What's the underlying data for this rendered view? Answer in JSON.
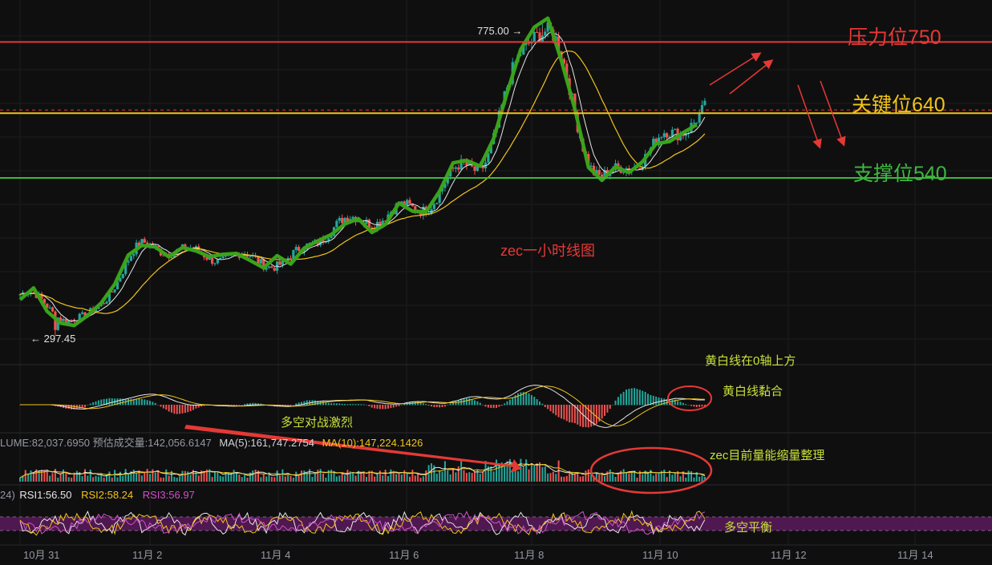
{
  "chart_data": {
    "type": "candlestick",
    "title": "zec一小时线图",
    "x_ticks": [
      "10月 31",
      "11月 2",
      "11月 4",
      "11月 6",
      "11月 8",
      "11月 10",
      "11月 12",
      "11月 14"
    ],
    "ylim": [
      270,
      805
    ],
    "price_path": [
      {
        "date": "10月 31",
        "close": 360
      },
      {
        "date": "11月 1",
        "close": 320
      },
      {
        "date": "11月 2",
        "close": 435
      },
      {
        "date": "11月 3",
        "close": 420
      },
      {
        "date": "11月 4",
        "close": 410
      },
      {
        "date": "11月 5",
        "close": 470
      },
      {
        "date": "11月 6",
        "close": 490
      },
      {
        "date": "11月 7",
        "close": 560
      },
      {
        "date": "11月 8",
        "close": 775
      },
      {
        "date": "11月 9",
        "close": 540
      },
      {
        "date": "11月 10",
        "close": 600
      },
      {
        "date": "11月 10",
        "close": 650
      }
    ],
    "high_marker": {
      "label": "775.00 →",
      "value": 775
    },
    "low_marker": {
      "label": "← 297.45",
      "value": 297.45
    },
    "current_price_line": 645,
    "levels": [
      {
        "label": "压力位750",
        "value": 750,
        "color": "#e53935"
      },
      {
        "label": "关键位640",
        "value": 640,
        "color": "#f0c419"
      },
      {
        "label": "支撑位540",
        "value": 540,
        "color": "#3db83d"
      }
    ],
    "annotations": [
      {
        "text": "zec一小时线图",
        "color": "#e53935"
      },
      {
        "text": "黄白线在0轴上方",
        "color": "#c8e03a"
      },
      {
        "text": "黄白线黏合",
        "color": "#c8e03a"
      },
      {
        "text": "多空对战激烈",
        "color": "#c8e03a"
      },
      {
        "text": "zec目前量能缩量整理",
        "color": "#c8e03a"
      },
      {
        "text": "多空平衡",
        "color": "#c8e03a"
      }
    ],
    "volume": {
      "label": "LUME:82,037.6950",
      "est_label": "预估成交量:142,056.6147",
      "ma5_label": "MA(5):161,747.2754",
      "ma10_label": "MA(10):147,224.1426"
    },
    "rsi": {
      "prefix": "24)",
      "rsi1": "RSI1:56.50",
      "rsi2": "RSI2:58.24",
      "rsi3": "RSI3:56.97"
    }
  },
  "colors": {
    "background": "#0f0f10",
    "up": "#26a69a",
    "down": "#ef5350",
    "trend": "#3aa31a",
    "ma_white": "#e6e6e6",
    "ma_yellow": "#f0c419",
    "rsi_band": "#5a1a5c"
  }
}
